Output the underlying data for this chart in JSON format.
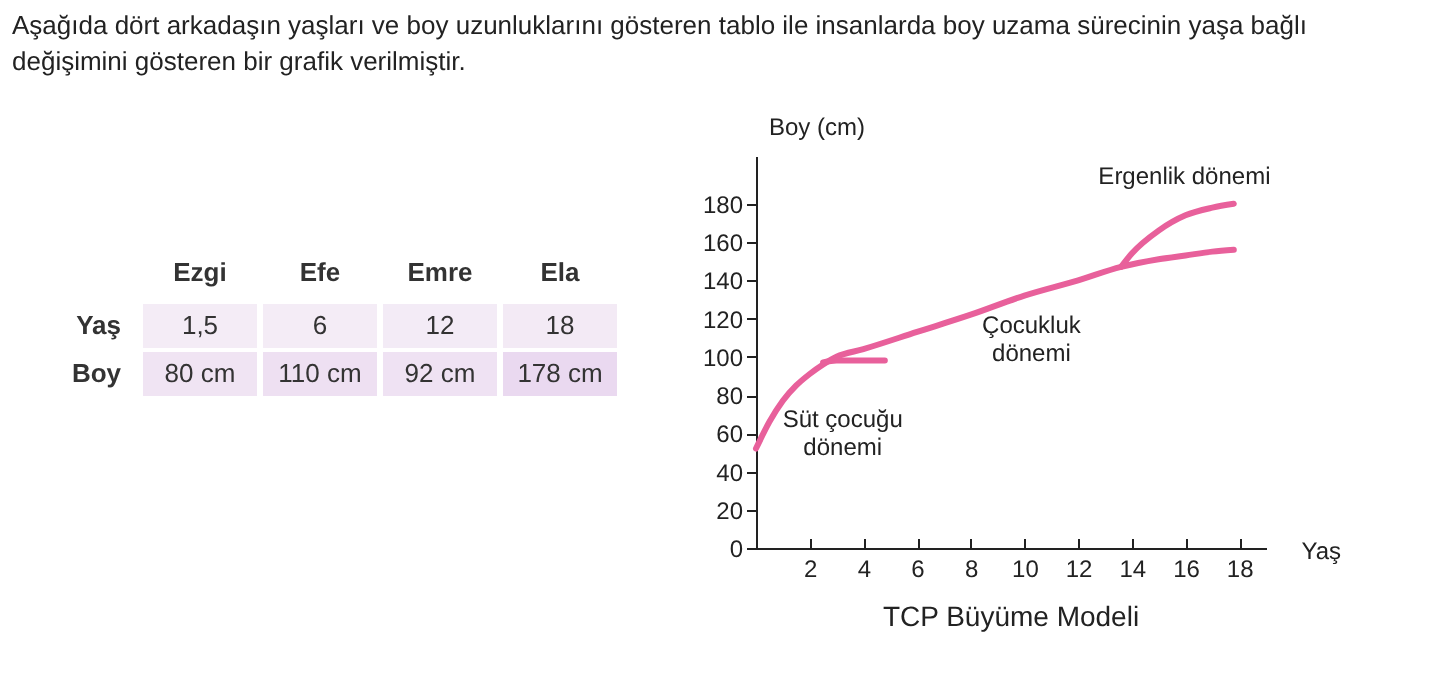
{
  "chart_data": [
    {
      "type": "heatmap",
      "title": "Aşağıda dört arkadaşın yaşları ve boy uzunluklarını gösteren tablo ile insanlarda boy uzama sürecinin yaşa bağlı değişimini gösteren bir grafik verilmiştir.",
      "categories": [
        "Ezgi",
        "Efe",
        "Emre",
        "Ela"
      ],
      "y_categories": [
        "Yaş",
        "Boy"
      ],
      "cells": [
        [
          1.5,
          6,
          12,
          18
        ],
        [
          80,
          110,
          92,
          178
        ]
      ],
      "cell_labels": [
        [
          "1,5",
          "6",
          "12",
          "18"
        ],
        [
          "80 cm",
          "110 cm",
          "92 cm",
          "178 cm"
        ]
      ]
    },
    {
      "type": "line",
      "title": "TCP Büyüme Modeli",
      "xlabel": "Yaş",
      "ylabel": "Boy (cm)",
      "xlim": [
        0,
        19
      ],
      "ylim": [
        0,
        205
      ],
      "xticks": [
        2,
        4,
        6,
        8,
        10,
        12,
        14,
        16,
        18
      ],
      "yticks": [
        0,
        20,
        40,
        60,
        80,
        100,
        120,
        140,
        160,
        180
      ],
      "grid": false,
      "marker": "none",
      "line_style": "solid",
      "series": [
        {
          "color": "#e8609b",
          "x": [
            0,
            0.5,
            1,
            1.5,
            2,
            2.5,
            3,
            4,
            6,
            8,
            10,
            12,
            13.6,
            15,
            16,
            17,
            17.8
          ],
          "values": [
            52,
            66,
            77,
            85,
            91,
            96,
            100,
            104,
            113,
            122,
            132,
            140,
            147,
            151,
            153,
            155,
            156
          ]
        },
        {
          "color": "#e8609b",
          "x": [
            2.5,
            3,
            4,
            4.8
          ],
          "values": [
            97,
            98,
            98,
            98
          ]
        },
        {
          "color": "#e8609b",
          "x": [
            13.6,
            14,
            15,
            16,
            17,
            17.8
          ],
          "values": [
            147,
            154,
            166,
            174,
            178,
            180
          ]
        }
      ],
      "annotations": [
        "Süt çocuğu dönemi",
        "Çocukluk dönemi",
        "Ergenlik dönemi"
      ]
    }
  ]
}
